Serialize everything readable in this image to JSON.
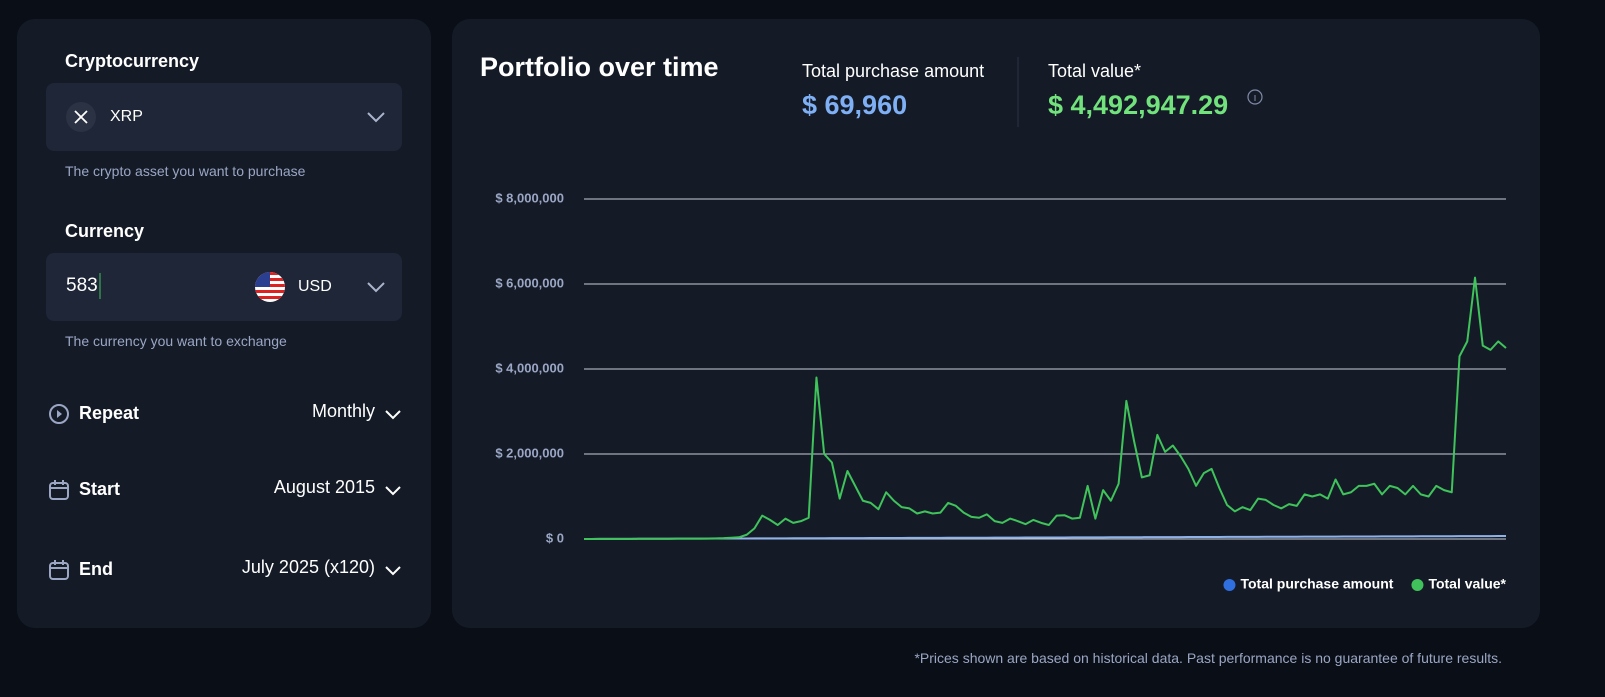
{
  "form": {
    "crypto_label": "Cryptocurrency",
    "crypto_value": "XRP",
    "crypto_help": "The crypto asset you want to purchase",
    "currency_label": "Currency",
    "amount": "583",
    "currency_value": "USD",
    "currency_help": "The currency you want to exchange",
    "repeat_label": "Repeat",
    "repeat_value": "Monthly",
    "start_label": "Start",
    "start_value": "August 2015",
    "end_label": "End",
    "end_value": "July 2025 (x120)"
  },
  "summary": {
    "purchase_label": "Total purchase amount",
    "purchase_value": "$ 69,960",
    "total_label": "Total value*",
    "total_value": "$ 4,492,947.29"
  },
  "footnote": "*Prices shown are based on historical data. Past performance is no guarantee of future results.",
  "chart_data": {
    "type": "line",
    "title": "Portfolio over time",
    "ylim": [
      0,
      8000000
    ],
    "yticks": [
      {
        "value": 0,
        "label": "$ 0"
      },
      {
        "value": 2000000,
        "label": "$ 2,000,000"
      },
      {
        "value": 4000000,
        "label": "$ 4,000,000"
      },
      {
        "value": 6000000,
        "label": "$ 6,000,000"
      },
      {
        "value": 8000000,
        "label": "$ 8,000,000"
      }
    ],
    "grid": true,
    "legend": "bottom-right",
    "series": [
      {
        "name": "Total purchase amount",
        "color": "#2f6fe0",
        "line_color": "#8fb2e8",
        "values": [
          583,
          1166,
          1749,
          2332,
          2915,
          3498,
          4081,
          4664,
          5247,
          5830,
          6413,
          6996,
          7579,
          8162,
          8745,
          9328,
          9911,
          10494,
          11077,
          11660,
          12243,
          12826,
          13409,
          13992,
          14575,
          15158,
          15741,
          16324,
          16907,
          17490,
          18073,
          18656,
          19239,
          19822,
          20405,
          20988,
          21571,
          22154,
          22737,
          23320,
          23903,
          24486,
          25069,
          25652,
          26235,
          26818,
          27401,
          27984,
          28567,
          29150,
          29733,
          30316,
          30899,
          31482,
          32065,
          32648,
          33231,
          33814,
          34397,
          34980,
          35563,
          36146,
          36729,
          37312,
          37895,
          38478,
          39061,
          39644,
          40227,
          40810,
          41393,
          41976,
          42559,
          43142,
          43725,
          44308,
          44891,
          45474,
          46057,
          46640,
          47223,
          47806,
          48389,
          48972,
          49555,
          50138,
          50721,
          51304,
          51887,
          52470,
          53053,
          53636,
          54219,
          54802,
          55385,
          55968,
          56551,
          57134,
          57717,
          58300,
          58883,
          59466,
          60049,
          60632,
          61215,
          61798,
          62381,
          62964,
          63547,
          64130,
          64713,
          65296,
          65879,
          66462,
          67045,
          67628,
          68211,
          68794,
          69377,
          69960
        ]
      },
      {
        "name": "Total value*",
        "color": "#3fc35a",
        "values": [
          600,
          1200,
          1700,
          2300,
          2800,
          3400,
          4000,
          4500,
          5000,
          5700,
          6300,
          6900,
          7500,
          8300,
          9000,
          10000,
          12000,
          15000,
          20000,
          30000,
          40000,
          100000,
          250000,
          550000,
          450000,
          330000,
          480000,
          380000,
          420000,
          500000,
          3800000,
          2000000,
          1800000,
          950000,
          1600000,
          1250000,
          900000,
          850000,
          700000,
          1100000,
          900000,
          750000,
          720000,
          600000,
          650000,
          600000,
          620000,
          850000,
          780000,
          620000,
          520000,
          500000,
          580000,
          420000,
          380000,
          480000,
          420000,
          350000,
          450000,
          380000,
          330000,
          550000,
          560000,
          480000,
          500000,
          1250000,
          480000,
          1150000,
          900000,
          1300000,
          3250000,
          2300000,
          1450000,
          1500000,
          2450000,
          2050000,
          2200000,
          1950000,
          1650000,
          1250000,
          1550000,
          1650000,
          1200000,
          800000,
          650000,
          750000,
          680000,
          950000,
          920000,
          800000,
          720000,
          820000,
          780000,
          1050000,
          1000000,
          1050000,
          950000,
          1400000,
          1050000,
          1100000,
          1250000,
          1250000,
          1300000,
          1050000,
          1250000,
          1200000,
          1050000,
          1250000,
          1050000,
          1000000,
          1250000,
          1150000,
          1100000,
          4300000,
          4650000,
          6150000,
          4550000,
          4450000,
          4650000,
          4492947.29
        ]
      }
    ]
  }
}
